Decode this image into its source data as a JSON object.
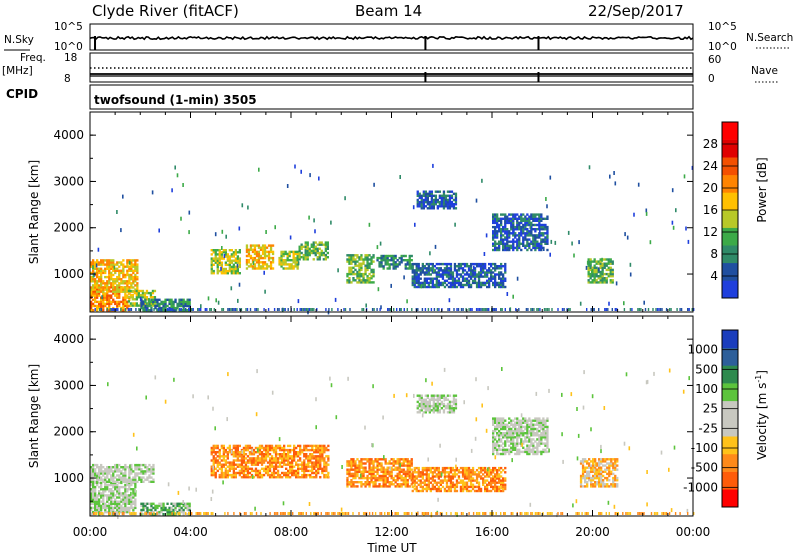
{
  "header": {
    "station": "Clyde River (fitACF)",
    "beam": "Beam 14",
    "date": "22/Sep/2017"
  },
  "strip_nsky": {
    "left_label": "N.Sky",
    "right_label": "N.Search",
    "ticks_left": [
      "10^5",
      "10^0"
    ],
    "ticks_right": [
      "10^5",
      "10^0"
    ]
  },
  "strip_freq": {
    "left_label": "Freq.",
    "left_unit": "[MHz]",
    "right_label": "Nave",
    "ticks_left": [
      "18",
      "8"
    ],
    "ticks_right": [
      "60",
      "0"
    ]
  },
  "cpid": {
    "label": "CPID",
    "program": "twofsound (1-min) 3505"
  },
  "colors": {
    "power_bins": [
      "#1f3fdc",
      "#1f4fa0",
      "#2f8a68",
      "#3caa48",
      "#b8c828",
      "#ffc000",
      "#ff8400",
      "#f45000",
      "#e00000",
      "#ff0000"
    ],
    "velocity_bins": [
      "#1a3dbd",
      "#2d5f9a",
      "#2e8a4e",
      "#5cc43c",
      "#c8c8c0",
      "#c8c8c0",
      "#ffc21a",
      "#ff8a1a",
      "#ff5c0a",
      "#ff0000"
    ]
  },
  "chart_data": [
    {
      "type": "heatmap",
      "name": "power",
      "ylabel": "Slant Range [km]",
      "ylim": [
        180,
        4500
      ],
      "yticks": [
        1000,
        2000,
        3000,
        4000
      ],
      "xlim": [
        0,
        24
      ],
      "colorbar": {
        "label": "Power [dB]",
        "range": [
          0,
          32
        ],
        "ticks": [
          4,
          8,
          12,
          16,
          20,
          24,
          28
        ]
      },
      "regions": [
        {
          "t0": 0.0,
          "t1": 1.6,
          "r0": 200,
          "r1": 700,
          "level": 28
        },
        {
          "t0": 0.0,
          "t1": 1.9,
          "r0": 600,
          "r1": 1300,
          "level": 22
        },
        {
          "t0": 1.5,
          "t1": 2.6,
          "r0": 300,
          "r1": 650,
          "level": 18
        },
        {
          "t0": 4.8,
          "t1": 6.0,
          "r0": 1000,
          "r1": 1500,
          "level": 20
        },
        {
          "t0": 6.2,
          "t1": 7.3,
          "r0": 1100,
          "r1": 1600,
          "level": 22
        },
        {
          "t0": 7.5,
          "t1": 8.3,
          "r0": 1100,
          "r1": 1500,
          "level": 20
        },
        {
          "t0": 8.3,
          "t1": 9.5,
          "r0": 1300,
          "r1": 1700,
          "level": 16
        },
        {
          "t0": 10.2,
          "t1": 11.3,
          "r0": 800,
          "r1": 1400,
          "level": 16
        },
        {
          "t0": 11.4,
          "t1": 12.8,
          "r0": 1100,
          "r1": 1400,
          "level": 12
        },
        {
          "t0": 12.8,
          "t1": 16.5,
          "r0": 700,
          "r1": 1200,
          "level": 8
        },
        {
          "t0": 13.0,
          "t1": 14.6,
          "r0": 2400,
          "r1": 2800,
          "level": 6
        },
        {
          "t0": 16.0,
          "t1": 18.2,
          "r0": 1500,
          "r1": 2300,
          "level": 6
        },
        {
          "t0": 19.8,
          "t1": 20.8,
          "r0": 800,
          "r1": 1300,
          "level": 16
        },
        {
          "t0": 2.0,
          "t1": 4.0,
          "r0": 200,
          "r1": 450,
          "level": 12
        }
      ]
    },
    {
      "type": "heatmap",
      "name": "velocity",
      "ylabel": "Slant Range [km]",
      "xlabel": "Time UT",
      "ylim": [
        180,
        4500
      ],
      "yticks": [
        1000,
        2000,
        3000,
        4000
      ],
      "xlim": [
        0,
        24
      ],
      "xticks": [
        "00:00",
        "04:00",
        "08:00",
        "12:00",
        "16:00",
        "20:00",
        "00:00"
      ],
      "colorbar": {
        "label": "Velocity [m s",
        "label_sup": "-1",
        "label_end": "]",
        "ticks": [
          "1000",
          "500",
          "100",
          "25",
          "-25",
          "-100",
          "-500",
          "-1000"
        ]
      },
      "regions": [
        {
          "t0": 0.0,
          "t1": 1.8,
          "r0": 200,
          "r1": 900,
          "level": 4
        },
        {
          "t0": 0.0,
          "t1": 2.5,
          "r0": 900,
          "r1": 1300,
          "level": 4
        },
        {
          "t0": 4.8,
          "t1": 9.5,
          "r0": 1000,
          "r1": 1700,
          "level": 7
        },
        {
          "t0": 10.2,
          "t1": 12.8,
          "r0": 800,
          "r1": 1400,
          "level": 7
        },
        {
          "t0": 12.8,
          "t1": 16.5,
          "r0": 700,
          "r1": 1200,
          "level": 7
        },
        {
          "t0": 13.0,
          "t1": 14.6,
          "r0": 2400,
          "r1": 2800,
          "level": 4
        },
        {
          "t0": 16.0,
          "t1": 18.2,
          "r0": 1500,
          "r1": 2300,
          "level": 4
        },
        {
          "t0": 19.5,
          "t1": 21.0,
          "r0": 800,
          "r1": 1400,
          "level": 6
        },
        {
          "t0": 2.0,
          "t1": 4.0,
          "r0": 200,
          "r1": 450,
          "level": 3
        }
      ]
    }
  ]
}
